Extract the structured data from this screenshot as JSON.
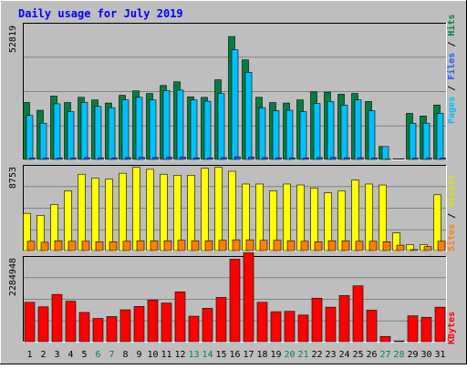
{
  "chart_data": {
    "type": "bar",
    "title": "Daily usage for July 2019",
    "categories": [
      "1",
      "2",
      "3",
      "4",
      "5",
      "6",
      "7",
      "8",
      "9",
      "10",
      "11",
      "12",
      "13",
      "14",
      "15",
      "16",
      "17",
      "18",
      "19",
      "20",
      "21",
      "22",
      "23",
      "24",
      "25",
      "26",
      "27",
      "28",
      "29",
      "30",
      "31"
    ],
    "weekend_days": [
      "6",
      "7",
      "13",
      "14",
      "20",
      "21",
      "27",
      "28"
    ],
    "grid": true,
    "panels": [
      {
        "name": "top",
        "ymax_label": "52819",
        "ymax": 52819,
        "legend": [
          "Pages",
          "/",
          "Files",
          "/",
          "Hits"
        ],
        "series": [
          {
            "name": "Hits",
            "color": "#008040",
            "values": [
              22000,
              19000,
              24500,
              22000,
              24000,
              23000,
              21800,
              24800,
              26500,
              25500,
              28600,
              30000,
              24200,
              24000,
              30800,
              47500,
              38500,
              24000,
              22000,
              21800,
              23000,
              26100,
              26000,
              25200,
              25500,
              22400,
              5000,
              0,
              17800,
              16800,
              21000
            ]
          },
          {
            "name": "Files",
            "color": "#00c0ff",
            "values": [
              17000,
              14000,
              21500,
              18500,
              22000,
              20500,
              20000,
              23000,
              24000,
              23000,
              26600,
              26800,
              23000,
              22500,
              25500,
              42400,
              33700,
              20000,
              18800,
              19000,
              18500,
              21600,
              22400,
              21000,
              23000,
              18800,
              5000,
              0,
              14000,
              14000,
              17800
            ]
          },
          {
            "name": "Pages",
            "color": "#2060ff",
            "values": [
              600,
              500,
              600,
              550,
              700,
              650,
              550,
              700,
              800,
              750,
              850,
              900,
              650,
              600,
              700,
              1000,
              900,
              700,
              650,
              600,
              600,
              700,
              750,
              650,
              700,
              600,
              150,
              0,
              500,
              450,
              550
            ]
          }
        ]
      },
      {
        "name": "middle",
        "ymax_label": "8753",
        "ymax": 8753,
        "legend": [
          "Sites",
          "/",
          "Visits"
        ],
        "series": [
          {
            "name": "Visits",
            "color": "#ffff00",
            "values": [
              3800,
              3600,
              4700,
              6100,
              7800,
              7400,
              7300,
              7900,
              8500,
              8300,
              7800,
              7700,
              7700,
              8400,
              8500,
              8100,
              6800,
              6800,
              6100,
              6800,
              6700,
              6400,
              5900,
              6100,
              7200,
              6800,
              6700,
              1800,
              600,
              600,
              5700
            ]
          },
          {
            "name": "Sites",
            "color": "#ff8000",
            "values": [
              950,
              850,
              1000,
              950,
              950,
              900,
              900,
              950,
              1000,
              1000,
              1000,
              1050,
              1000,
              1000,
              1050,
              1100,
              1100,
              1050,
              1050,
              1000,
              950,
              900,
              1000,
              1000,
              950,
              950,
              900,
              550,
              100,
              400,
              950
            ]
          }
        ]
      },
      {
        "name": "bottom",
        "ymax_label": "2284948",
        "ymax": 2284948,
        "legend": [
          "KBytes"
        ],
        "series": [
          {
            "name": "KBytes",
            "color": "#ff0000",
            "values": [
              1050000,
              930000,
              1260000,
              1080000,
              780000,
              620000,
              670000,
              850000,
              940000,
              1110000,
              1030000,
              1330000,
              680000,
              890000,
              1180000,
              2200000,
              2370000,
              1050000,
              800000,
              810000,
              710000,
              1160000,
              920000,
              1230000,
              1490000,
              840000,
              140000,
              20000,
              690000,
              650000,
              920000
            ]
          }
        ]
      }
    ]
  }
}
